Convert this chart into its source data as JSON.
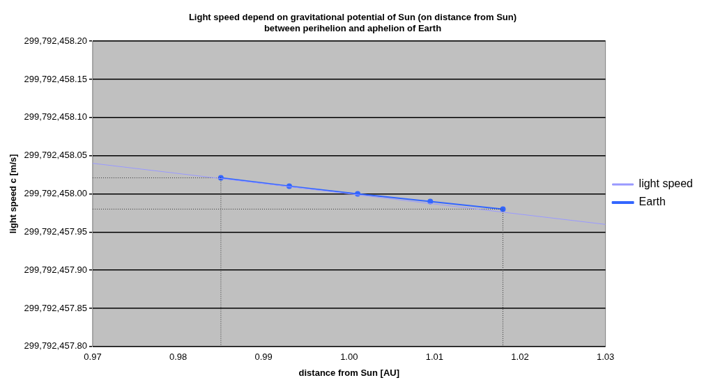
{
  "chart_data": {
    "type": "line",
    "title": [
      "Light speed depend on gravitational potential of Sun (on distance from Sun)",
      "between perihelion and aphelion of Earth"
    ],
    "xlabel": "distance from Sun [AU]",
    "ylabel": "light speed c [m/s]",
    "series": [
      {
        "name": "light speed",
        "color": "#9999ff",
        "x": [
          0.97,
          1.03
        ],
        "values": [
          299792458.04,
          299792457.96
        ],
        "marker": "none"
      },
      {
        "color": "#333333",
        "x": [
          0.97,
          0.985,
          0.985
        ],
        "values": [
          299792458.021,
          299792458.021,
          299792457.8
        ],
        "marker": "none",
        "line_style": "dotted"
      },
      {
        "color": "#333333",
        "x": [
          0.97,
          1.018,
          1.018
        ],
        "values": [
          299792457.98,
          299792457.98,
          299792457.8
        ],
        "marker": "none",
        "line_style": "dotted"
      },
      {
        "name": "Earth",
        "color": "#3366ff",
        "x": [
          0.985,
          0.993,
          1.001,
          1.0095,
          1.018
        ],
        "values": [
          299792458.021,
          299792458.01,
          299792458.0,
          299792457.99,
          299792457.98
        ],
        "marker": "circle"
      }
    ],
    "xlim": [
      0.97,
      1.03
    ],
    "xticks": [
      {
        "value": 0.97,
        "label": "0.97"
      },
      {
        "value": 0.98,
        "label": "0.98"
      },
      {
        "value": 0.99,
        "label": "0.99"
      },
      {
        "value": 1.0,
        "label": "1.00"
      },
      {
        "value": 1.01,
        "label": "1.01"
      },
      {
        "value": 1.02,
        "label": "1.02"
      },
      {
        "value": 1.03,
        "label": "1.03"
      }
    ],
    "ylim": [
      299792457.8,
      299792458.2
    ],
    "yticks": [
      {
        "value": 299792457.8,
        "label": "299,792,457.80"
      },
      {
        "value": 299792457.85,
        "label": "299,792,457.85"
      },
      {
        "value": 299792457.9,
        "label": "299,792,457.90"
      },
      {
        "value": 299792457.95,
        "label": "299,792,457.95"
      },
      {
        "value": 299792458.0,
        "label": "299,792,458.00"
      },
      {
        "value": 299792458.05,
        "label": "299,792,458.05"
      },
      {
        "value": 299792458.1,
        "label": "299,792,458.10"
      },
      {
        "value": 299792458.15,
        "label": "299,792,458.15"
      },
      {
        "value": 299792458.2,
        "label": "299,792,458.20"
      }
    ],
    "grid": "y",
    "legend": "right"
  }
}
